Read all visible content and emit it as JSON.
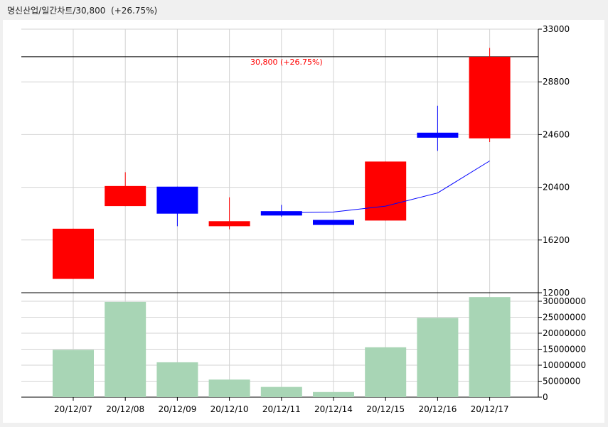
{
  "header": {
    "title": "명신산업/일간차트/30,800  (+26.75%)"
  },
  "colors": {
    "up": "#ff0000",
    "down": "#0000ff",
    "ma_line": "#0000ff",
    "volume": "#a8d5b5",
    "grid": "#d3d3d3",
    "background": "#ffffff"
  },
  "chart_data": [
    {
      "type": "candlestick",
      "title": "",
      "categories": [
        "20/12/07",
        "20/12/08",
        "20/12/09",
        "20/12/10",
        "20/12/11",
        "20/12/14",
        "20/12/15",
        "20/12/16",
        "20/12/17"
      ],
      "open": [
        13100,
        18900,
        20450,
        17300,
        18500,
        17800,
        17750,
        24750,
        24300
      ],
      "close": [
        17100,
        20500,
        18300,
        17700,
        18150,
        17400,
        22450,
        24350,
        30800
      ],
      "high": [
        17100,
        21600,
        20450,
        19600,
        19000,
        17800,
        22450,
        26900,
        31500
      ],
      "low": [
        13100,
        18900,
        17300,
        17050,
        18050,
        17400,
        17750,
        23300,
        24000
      ],
      "ma": [
        null,
        null,
        null,
        null,
        18370,
        18430,
        18900,
        19950,
        22500
      ],
      "ylim": [
        12000,
        33000
      ],
      "yticks": [
        "12000",
        "16200",
        "20400",
        "24600",
        "28800",
        "33000"
      ],
      "reference_line": 30800,
      "annotation": "30,800 (+26.75%)"
    },
    {
      "type": "bar",
      "title": "",
      "categories": [
        "20/12/07",
        "20/12/08",
        "20/12/09",
        "20/12/10",
        "20/12/11",
        "20/12/14",
        "20/12/15",
        "20/12/16",
        "20/12/17"
      ],
      "values": [
        14800000,
        29800000,
        10900000,
        5500000,
        3200000,
        1600000,
        15600000,
        24800000,
        31300000
      ],
      "ylim": [
        0,
        30000000
      ],
      "yticks": [
        "0",
        "5000000",
        "10000000",
        "15000000",
        "20000000",
        "25000000",
        "30000000"
      ]
    }
  ]
}
